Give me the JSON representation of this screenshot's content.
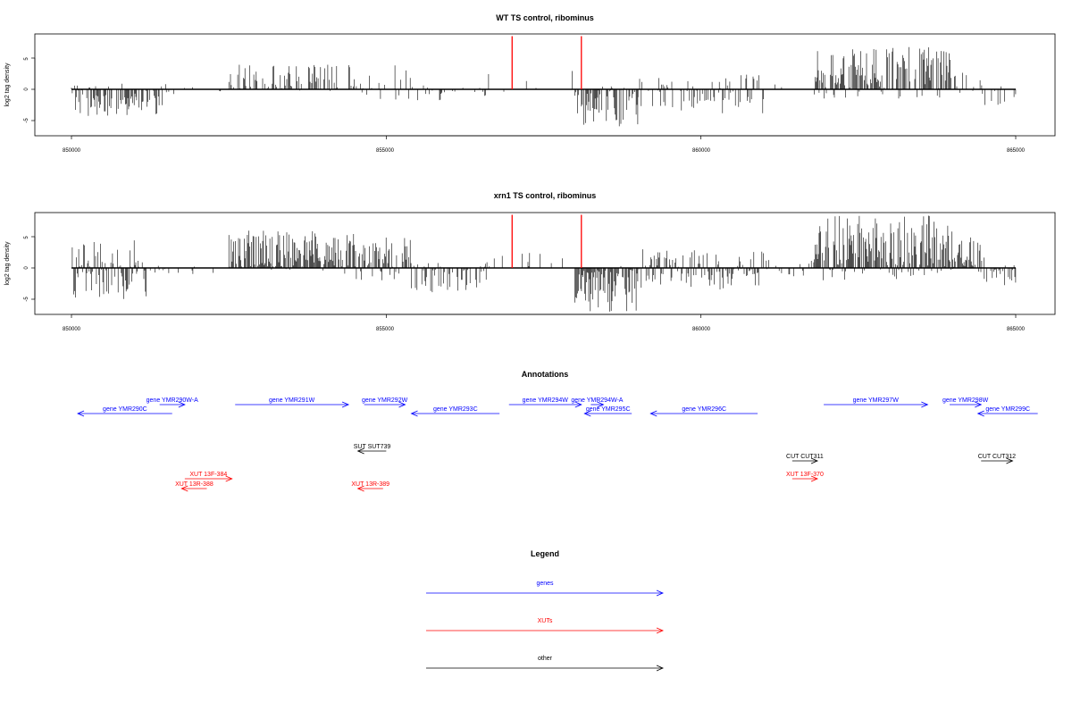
{
  "chart_data": [
    {
      "type": "bar",
      "title": "WT TS control, ribominus",
      "ylabel": "log2 tag density",
      "xlabel": "",
      "xlim": [
        850000,
        865000
      ],
      "ylim": [
        -7,
        9
      ],
      "x_ticks": [
        "850000",
        "855000",
        "860000",
        "865000"
      ],
      "y_ticks": [
        "-5",
        "0",
        "5"
      ],
      "markers": {
        "color": "#ff0000",
        "x": [
          857000,
          858100
        ],
        "height": 8.5
      },
      "regions": [
        {
          "start": 850000,
          "end": 851550,
          "min": -4.5,
          "max": 1.0,
          "density": 0.75
        },
        {
          "start": 851550,
          "end": 852500,
          "min": -0.8,
          "max": 0.6,
          "density": 0.12
        },
        {
          "start": 852500,
          "end": 854500,
          "min": -0.6,
          "max": 4.0,
          "density": 0.45
        },
        {
          "start": 854500,
          "end": 855400,
          "min": -1.8,
          "max": 5.0,
          "density": 0.45
        },
        {
          "start": 855400,
          "end": 856600,
          "min": -2.0,
          "max": 0.7,
          "density": 0.25
        },
        {
          "start": 856600,
          "end": 858000,
          "min": -0.5,
          "max": 3.0,
          "density": 0.08
        },
        {
          "start": 858000,
          "end": 859000,
          "min": -6.0,
          "max": 0.5,
          "density": 0.8
        },
        {
          "start": 859000,
          "end": 860100,
          "min": -3.5,
          "max": 2.0,
          "density": 0.55
        },
        {
          "start": 860100,
          "end": 861000,
          "min": -4.0,
          "max": 2.5,
          "density": 0.5
        },
        {
          "start": 861000,
          "end": 861800,
          "min": -0.3,
          "max": 1.3,
          "density": 0.05
        },
        {
          "start": 861800,
          "end": 864000,
          "min": -1.5,
          "max": 7.0,
          "density": 0.85
        },
        {
          "start": 864000,
          "end": 864500,
          "min": -1.0,
          "max": 6.5,
          "density": 0.3
        },
        {
          "start": 864500,
          "end": 865000,
          "min": -3.0,
          "max": 0.5,
          "density": 0.4
        }
      ]
    },
    {
      "type": "bar",
      "title": "xrn1 TS control, ribominus",
      "ylabel": "log2 tag density",
      "xlabel": "",
      "xlim": [
        850000,
        865000
      ],
      "ylim": [
        -7,
        9
      ],
      "x_ticks": [
        "850000",
        "855000",
        "860000",
        "865000"
      ],
      "y_ticks": [
        "-5",
        "0",
        "5"
      ],
      "markers": {
        "color": "#ff0000",
        "x": [
          857000,
          858100
        ],
        "height": 8.5
      },
      "regions": [
        {
          "start": 850000,
          "end": 851200,
          "min": -5.0,
          "max": 4.5,
          "density": 0.8
        },
        {
          "start": 851200,
          "end": 852500,
          "min": -1.0,
          "max": 0.5,
          "density": 0.15
        },
        {
          "start": 852500,
          "end": 854200,
          "min": -0.5,
          "max": 6.0,
          "density": 0.9
        },
        {
          "start": 854200,
          "end": 854500,
          "min": -1.0,
          "max": 7.0,
          "density": 0.7
        },
        {
          "start": 854500,
          "end": 855400,
          "min": -2.0,
          "max": 5.0,
          "density": 0.8
        },
        {
          "start": 855400,
          "end": 856600,
          "min": -4.0,
          "max": 0.8,
          "density": 0.6
        },
        {
          "start": 856600,
          "end": 858000,
          "min": -0.5,
          "max": 2.5,
          "density": 0.12
        },
        {
          "start": 858000,
          "end": 859000,
          "min": -7.0,
          "max": 0.5,
          "density": 0.9
        },
        {
          "start": 859000,
          "end": 861000,
          "min": -3.5,
          "max": 3.0,
          "density": 0.7
        },
        {
          "start": 861000,
          "end": 861800,
          "min": -1.5,
          "max": 2.0,
          "density": 0.2
        },
        {
          "start": 861800,
          "end": 864000,
          "min": -2.0,
          "max": 8.5,
          "density": 0.95
        },
        {
          "start": 864000,
          "end": 864500,
          "min": -1.0,
          "max": 5.0,
          "density": 0.8
        },
        {
          "start": 864500,
          "end": 865000,
          "min": -3.0,
          "max": 0.5,
          "density": 0.6
        }
      ]
    }
  ],
  "annotations": {
    "title": "Annotations",
    "items": [
      {
        "label": "gene YMR290W-A",
        "start": 851400,
        "end": 851800,
        "strand": "+",
        "color": "#0000ff",
        "row": 0
      },
      {
        "label": "gene YMR290C",
        "start": 850100,
        "end": 851600,
        "strand": "-",
        "color": "#0000ff",
        "row": 1
      },
      {
        "label": "gene YMR291W",
        "start": 852600,
        "end": 854400,
        "strand": "+",
        "color": "#0000ff",
        "row": 0
      },
      {
        "label": "gene YMR292W",
        "start": 854650,
        "end": 855300,
        "strand": "+",
        "color": "#0000ff",
        "row": 0
      },
      {
        "label": "gene YMR293C",
        "start": 855400,
        "end": 856800,
        "strand": "-",
        "color": "#0000ff",
        "row": 1
      },
      {
        "label": "gene YMR294W",
        "start": 856950,
        "end": 858100,
        "strand": "+",
        "color": "#0000ff",
        "row": 0
      },
      {
        "label": "gene YMR294W-A",
        "start": 858250,
        "end": 858450,
        "strand": "+",
        "color": "#0000ff",
        "row": 0
      },
      {
        "label": "gene YMR295C",
        "start": 858150,
        "end": 858900,
        "strand": "-",
        "color": "#0000ff",
        "row": 1
      },
      {
        "label": "gene YMR296C",
        "start": 859200,
        "end": 860900,
        "strand": "-",
        "color": "#0000ff",
        "row": 1
      },
      {
        "label": "gene YMR297W",
        "start": 861950,
        "end": 863600,
        "strand": "+",
        "color": "#0000ff",
        "row": 0
      },
      {
        "label": "gene YMR298W",
        "start": 863950,
        "end": 864450,
        "strand": "+",
        "color": "#0000ff",
        "row": 0
      },
      {
        "label": "gene YMR299C",
        "start": 864400,
        "end": 865350,
        "strand": "-",
        "color": "#0000ff",
        "row": 1
      },
      {
        "label": "SUT SUT739",
        "start": 854550,
        "end": 855000,
        "strand": "-",
        "color": "#000000",
        "row": 2
      },
      {
        "label": "CUT CUT311",
        "start": 861450,
        "end": 861850,
        "strand": "+",
        "color": "#000000",
        "row": 3
      },
      {
        "label": "CUT CUT312",
        "start": 864450,
        "end": 864950,
        "strand": "+",
        "color": "#000000",
        "row": 3
      },
      {
        "label": "XUT 13F-384",
        "start": 851800,
        "end": 852550,
        "strand": "+",
        "color": "#ff0000",
        "row": 4
      },
      {
        "label": "XUT 13R-388",
        "start": 851750,
        "end": 852150,
        "strand": "-",
        "color": "#ff0000",
        "row": 5
      },
      {
        "label": "XUT 13R-389",
        "start": 854550,
        "end": 854950,
        "strand": "-",
        "color": "#ff0000",
        "row": 5
      },
      {
        "label": "XUT 13F-370",
        "start": 861450,
        "end": 861850,
        "strand": "+",
        "color": "#ff0000",
        "row": 4
      }
    ]
  },
  "legend": {
    "title": "Legend",
    "items": [
      {
        "label": "genes",
        "color": "#0000ff"
      },
      {
        "label": "XUTs",
        "color": "#ff0000"
      },
      {
        "label": "other",
        "color": "#000000"
      }
    ]
  }
}
